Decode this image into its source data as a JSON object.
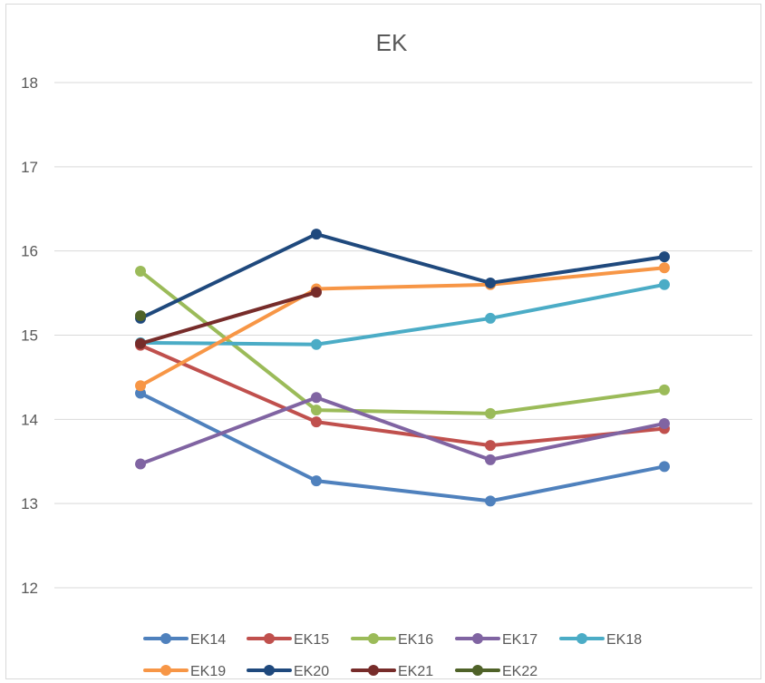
{
  "chart_data": {
    "type": "line",
    "title": "EK",
    "xlabel": "",
    "ylabel": "",
    "ylim": [
      12,
      18
    ],
    "yticks": [
      "12",
      "13",
      "14",
      "15",
      "16",
      "17",
      "18"
    ],
    "categories": [
      "",
      "",
      "",
      ""
    ],
    "grid": true,
    "legend_position": "bottom",
    "series": [
      {
        "name": "EK14",
        "color": "#4f81bd",
        "values": [
          14.31,
          13.27,
          13.03,
          13.44
        ]
      },
      {
        "name": "EK15",
        "color": "#c0504d",
        "values": [
          14.88,
          13.97,
          13.69,
          13.89
        ]
      },
      {
        "name": "EK16",
        "color": "#9bbb59",
        "values": [
          15.76,
          14.11,
          14.07,
          14.35
        ]
      },
      {
        "name": "EK17",
        "color": "#8064a2",
        "values": [
          13.47,
          14.26,
          13.52,
          13.95
        ]
      },
      {
        "name": "EK18",
        "color": "#4bacc6",
        "values": [
          14.91,
          14.89,
          15.2,
          15.6
        ]
      },
      {
        "name": "EK19",
        "color": "#f79646",
        "values": [
          14.4,
          15.55,
          15.6,
          15.8
        ]
      },
      {
        "name": "EK20",
        "color": "#1f497d",
        "values": [
          15.2,
          16.2,
          15.62,
          15.93
        ]
      },
      {
        "name": "EK21",
        "color": "#772c2a",
        "values": [
          14.9,
          15.51,
          null,
          null
        ]
      },
      {
        "name": "EK22",
        "color": "#4f6228",
        "values": [
          15.23,
          null,
          null,
          null
        ]
      }
    ]
  }
}
